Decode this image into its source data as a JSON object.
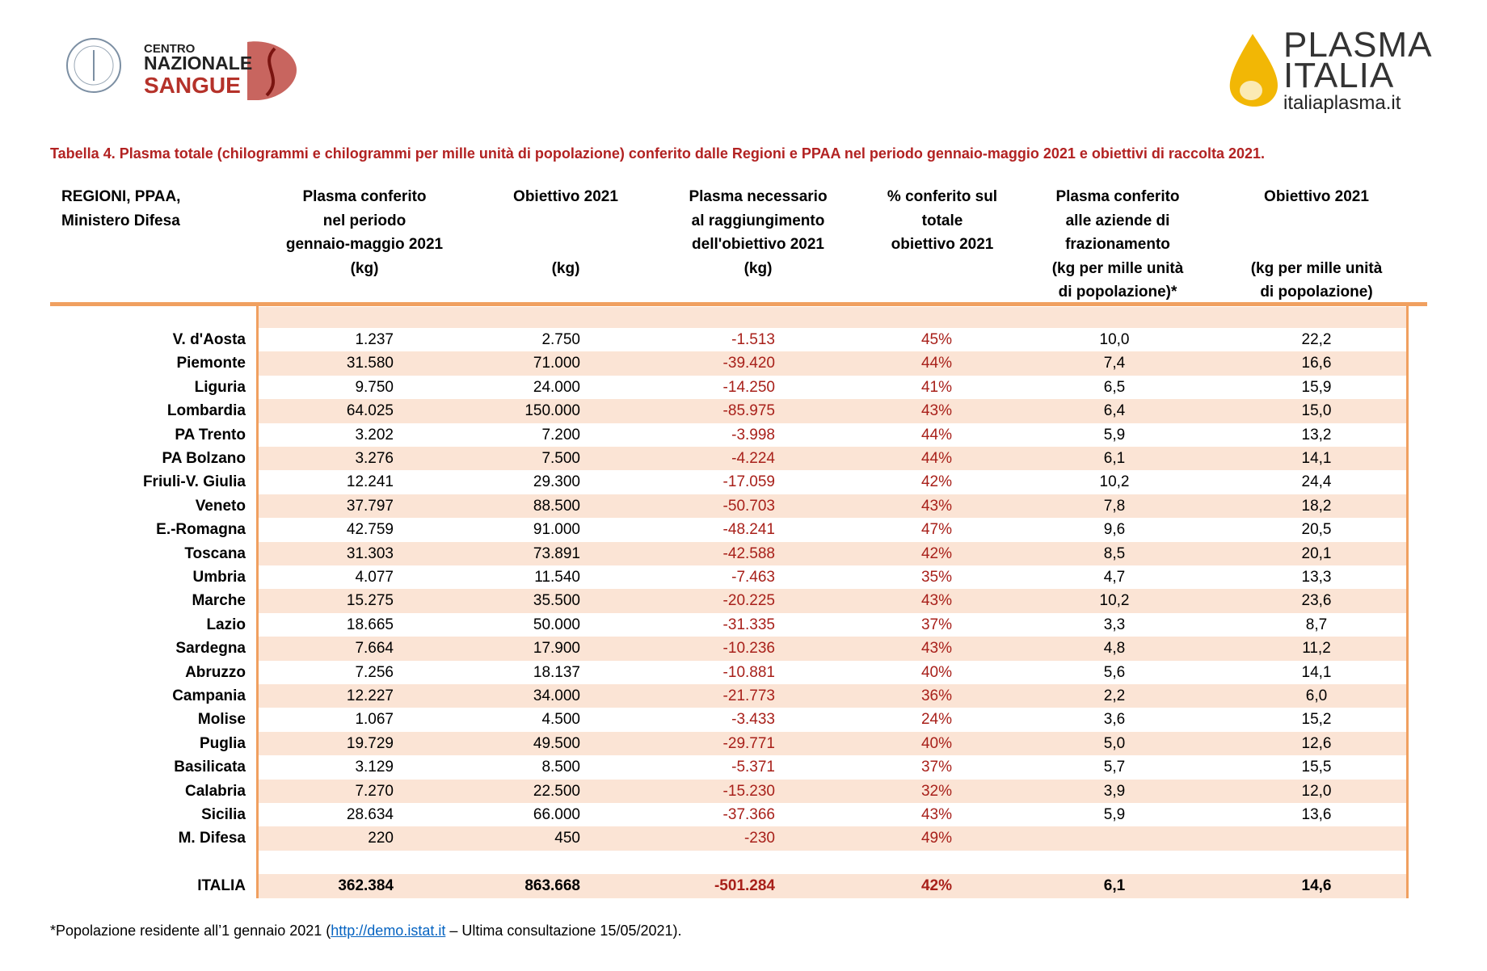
{
  "logos": {
    "cns": [
      "CENTRO",
      "NAZIONALE",
      "SANGUE"
    ],
    "plasma": [
      "PLASMA",
      "ITALIA"
    ],
    "site": "italiaplasma.it"
  },
  "title": "Tabella 4. Plasma totale (chilogrammi e chilogrammi per mille unità di popolazione) conferito dalle Regioni e PPAA nel periodo gennaio-maggio 2021 e obiettivi di raccolta 2021.",
  "table": {
    "header": [
      {
        "lines": [
          "REGIONI, PPAA,",
          "Ministero Difesa"
        ]
      },
      {
        "lines": [
          "Plasma conferito",
          "nel periodo",
          "gennaio-maggio 2021",
          "(kg)"
        ]
      },
      {
        "lines": [
          "Obiettivo 2021"
        ],
        "unit_lines": [
          "(kg)"
        ]
      },
      {
        "lines": [
          "Plasma necessario",
          "al raggiungimento",
          "dell'obiettivo 2021",
          "(kg)"
        ]
      },
      {
        "lines": [
          "% conferito sul",
          "totale",
          "obiettivo 2021"
        ]
      },
      {
        "lines": [
          "Plasma conferito",
          "alle aziende di",
          "frazionamento",
          "(kg per mille unità",
          "di popolazione)*"
        ]
      },
      {
        "lines": [
          "Obiettivo 2021"
        ],
        "unit_lines": [
          "(kg per mille unità",
          "di popolazione)"
        ]
      }
    ],
    "rows": [
      [
        "V. d'Aosta",
        "1.237",
        "2.750",
        "-1.513",
        "45%",
        "10,0",
        "22,2"
      ],
      [
        "Piemonte",
        "31.580",
        "71.000",
        "-39.420",
        "44%",
        "7,4",
        "16,6"
      ],
      [
        "Liguria",
        "9.750",
        "24.000",
        "-14.250",
        "41%",
        "6,5",
        "15,9"
      ],
      [
        "Lombardia",
        "64.025",
        "150.000",
        "-85.975",
        "43%",
        "6,4",
        "15,0"
      ],
      [
        "PA Trento",
        "3.202",
        "7.200",
        "-3.998",
        "44%",
        "5,9",
        "13,2"
      ],
      [
        "PA Bolzano",
        "3.276",
        "7.500",
        "-4.224",
        "44%",
        "6,1",
        "14,1"
      ],
      [
        "Friuli-V. Giulia",
        "12.241",
        "29.300",
        "-17.059",
        "42%",
        "10,2",
        "24,4"
      ],
      [
        "Veneto",
        "37.797",
        "88.500",
        "-50.703",
        "43%",
        "7,8",
        "18,2"
      ],
      [
        "E.-Romagna",
        "42.759",
        "91.000",
        "-48.241",
        "47%",
        "9,6",
        "20,5"
      ],
      [
        "Toscana",
        "31.303",
        "73.891",
        "-42.588",
        "42%",
        "8,5",
        "20,1"
      ],
      [
        "Umbria",
        "4.077",
        "11.540",
        "-7.463",
        "35%",
        "4,7",
        "13,3"
      ],
      [
        "Marche",
        "15.275",
        "35.500",
        "-20.225",
        "43%",
        "10,2",
        "23,6"
      ],
      [
        "Lazio",
        "18.665",
        "50.000",
        "-31.335",
        "37%",
        "3,3",
        "8,7"
      ],
      [
        "Sardegna",
        "7.664",
        "17.900",
        "-10.236",
        "43%",
        "4,8",
        "11,2"
      ],
      [
        "Abruzzo",
        "7.256",
        "18.137",
        "-10.881",
        "40%",
        "5,6",
        "14,1"
      ],
      [
        "Campania",
        "12.227",
        "34.000",
        "-21.773",
        "36%",
        "2,2",
        "6,0"
      ],
      [
        "Molise",
        "1.067",
        "4.500",
        "-3.433",
        "24%",
        "3,6",
        "15,2"
      ],
      [
        "Puglia",
        "19.729",
        "49.500",
        "-29.771",
        "40%",
        "5,0",
        "12,6"
      ],
      [
        "Basilicata",
        "3.129",
        "8.500",
        "-5.371",
        "37%",
        "5,7",
        "15,5"
      ],
      [
        "Calabria",
        "7.270",
        "22.500",
        "-15.230",
        "32%",
        "3,9",
        "12,0"
      ],
      [
        "Sicilia",
        "28.634",
        "66.000",
        "-37.366",
        "43%",
        "5,9",
        "13,6"
      ],
      [
        "M. Difesa",
        "220",
        "450",
        "-230",
        "49%",
        null,
        null
      ]
    ],
    "total": [
      "ITALIA",
      "362.384",
      "863.668",
      "-501.284",
      "42%",
      "6,1",
      "14,6"
    ]
  },
  "footnote": {
    "before": "*Popolazione residente all’1 gennaio 2021 (",
    "link": "http://demo.istat.it",
    "after": " – Ultima consultazione 15/05/2021)."
  }
}
